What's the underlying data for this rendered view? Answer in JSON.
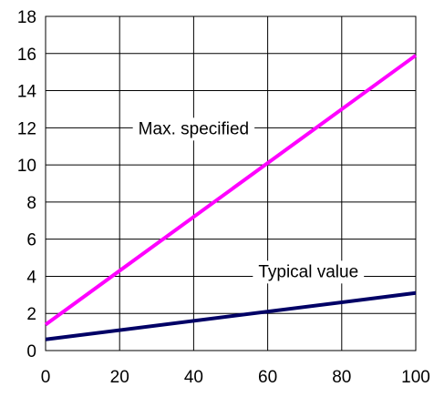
{
  "chart_data": {
    "type": "line",
    "title": "",
    "xlabel": "",
    "ylabel": "",
    "xlim": [
      0,
      100
    ],
    "ylim": [
      0,
      18
    ],
    "x_ticks": [
      0,
      20,
      40,
      60,
      80,
      100
    ],
    "y_ticks": [
      0,
      2,
      4,
      6,
      8,
      10,
      12,
      14,
      16,
      18
    ],
    "grid": true,
    "legend": "none",
    "series": [
      {
        "color": "#ff00ff",
        "x": [
          0,
          100
        ],
        "y": [
          1.4,
          15.9
        ]
      },
      {
        "color": "#000066",
        "x": [
          0,
          100
        ],
        "y": [
          0.6,
          3.1
        ]
      }
    ],
    "annotations": [
      {
        "text": "Max. specified",
        "x": 40,
        "y": 12
      },
      {
        "text": "Typical value",
        "x": 71,
        "y": 4.3
      }
    ]
  }
}
